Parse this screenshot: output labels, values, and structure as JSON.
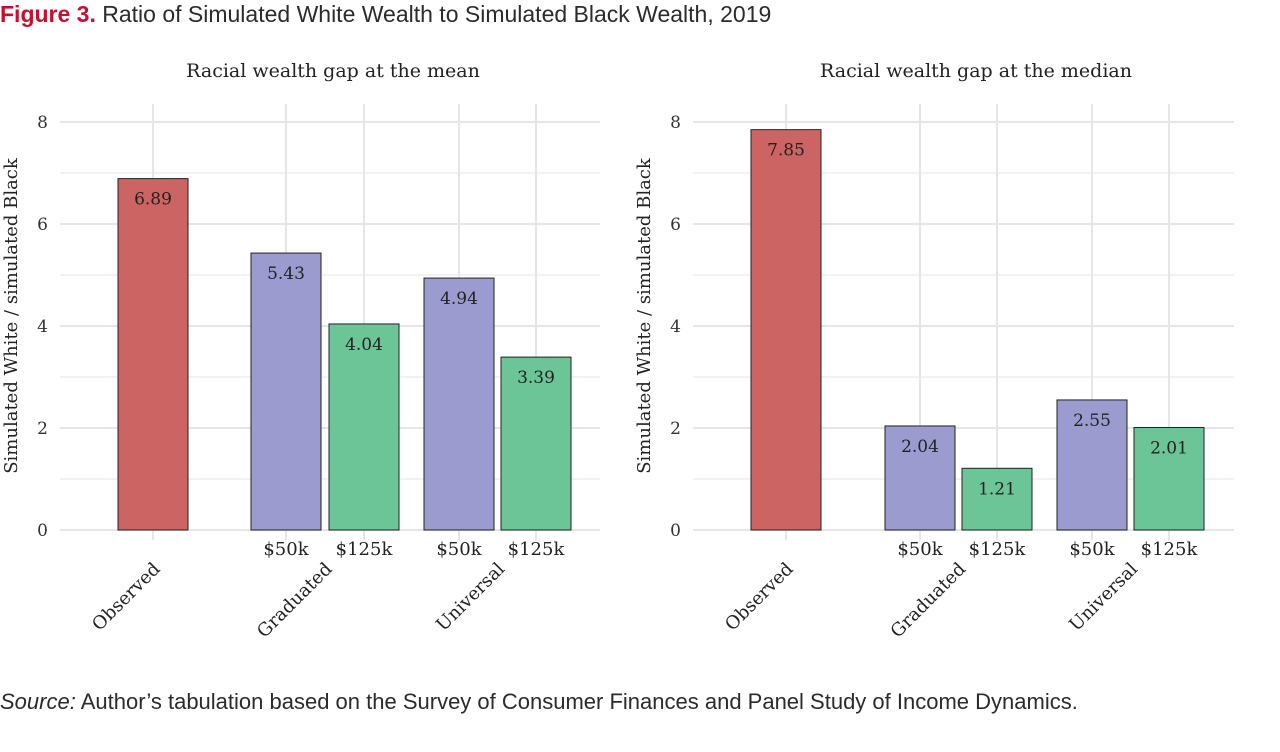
{
  "figure": {
    "label": "Figure 3.",
    "title": "Ratio of Simulated White Wealth to Simulated Black Wealth, 2019"
  },
  "source": {
    "label": "Source:",
    "text": "Author’s tabulation based on the Survey of Consumer Finances and Panel Study of Income Dynamics."
  },
  "colors": {
    "observed": "#cd6464",
    "fifty_k": "#9b9bcf",
    "one_twenty_five_k": "#6cc596",
    "grid": "#e6e6e6",
    "bar_outline": "#222222"
  },
  "chart_data": [
    {
      "type": "bar",
      "title": "Racial wealth gap at the mean",
      "ylabel": "Simulated White / simulated Black",
      "ylim": [
        0,
        8
      ],
      "yticks": [
        0,
        2,
        4,
        6,
        8
      ],
      "grid": true,
      "groups": [
        "Observed",
        "Graduated",
        "Universal"
      ],
      "bars": [
        {
          "group": "Observed",
          "sublabel": "",
          "value": 6.89,
          "label": "6.89",
          "color_key": "observed"
        },
        {
          "group": "Graduated",
          "sublabel": "$50k",
          "value": 5.43,
          "label": "5.43",
          "color_key": "fifty_k"
        },
        {
          "group": "Graduated",
          "sublabel": "$125k",
          "value": 4.04,
          "label": "4.04",
          "color_key": "one_twenty_five_k"
        },
        {
          "group": "Universal",
          "sublabel": "$50k",
          "value": 4.94,
          "label": "4.94",
          "color_key": "fifty_k"
        },
        {
          "group": "Universal",
          "sublabel": "$125k",
          "value": 3.39,
          "label": "3.39",
          "color_key": "one_twenty_five_k"
        }
      ]
    },
    {
      "type": "bar",
      "title": "Racial wealth gap at the median",
      "ylabel": "Simulated White / simulated Black",
      "ylim": [
        0,
        8
      ],
      "yticks": [
        0,
        2,
        4,
        6,
        8
      ],
      "grid": true,
      "groups": [
        "Observed",
        "Graduated",
        "Universal"
      ],
      "bars": [
        {
          "group": "Observed",
          "sublabel": "",
          "value": 7.85,
          "label": "7.85",
          "color_key": "observed"
        },
        {
          "group": "Graduated",
          "sublabel": "$50k",
          "value": 2.04,
          "label": "2.04",
          "color_key": "fifty_k"
        },
        {
          "group": "Graduated",
          "sublabel": "$125k",
          "value": 1.21,
          "label": "1.21",
          "color_key": "one_twenty_five_k"
        },
        {
          "group": "Universal",
          "sublabel": "$50k",
          "value": 2.55,
          "label": "2.55",
          "color_key": "fifty_k"
        },
        {
          "group": "Universal",
          "sublabel": "$125k",
          "value": 2.01,
          "label": "2.01",
          "color_key": "one_twenty_five_k"
        }
      ]
    }
  ]
}
